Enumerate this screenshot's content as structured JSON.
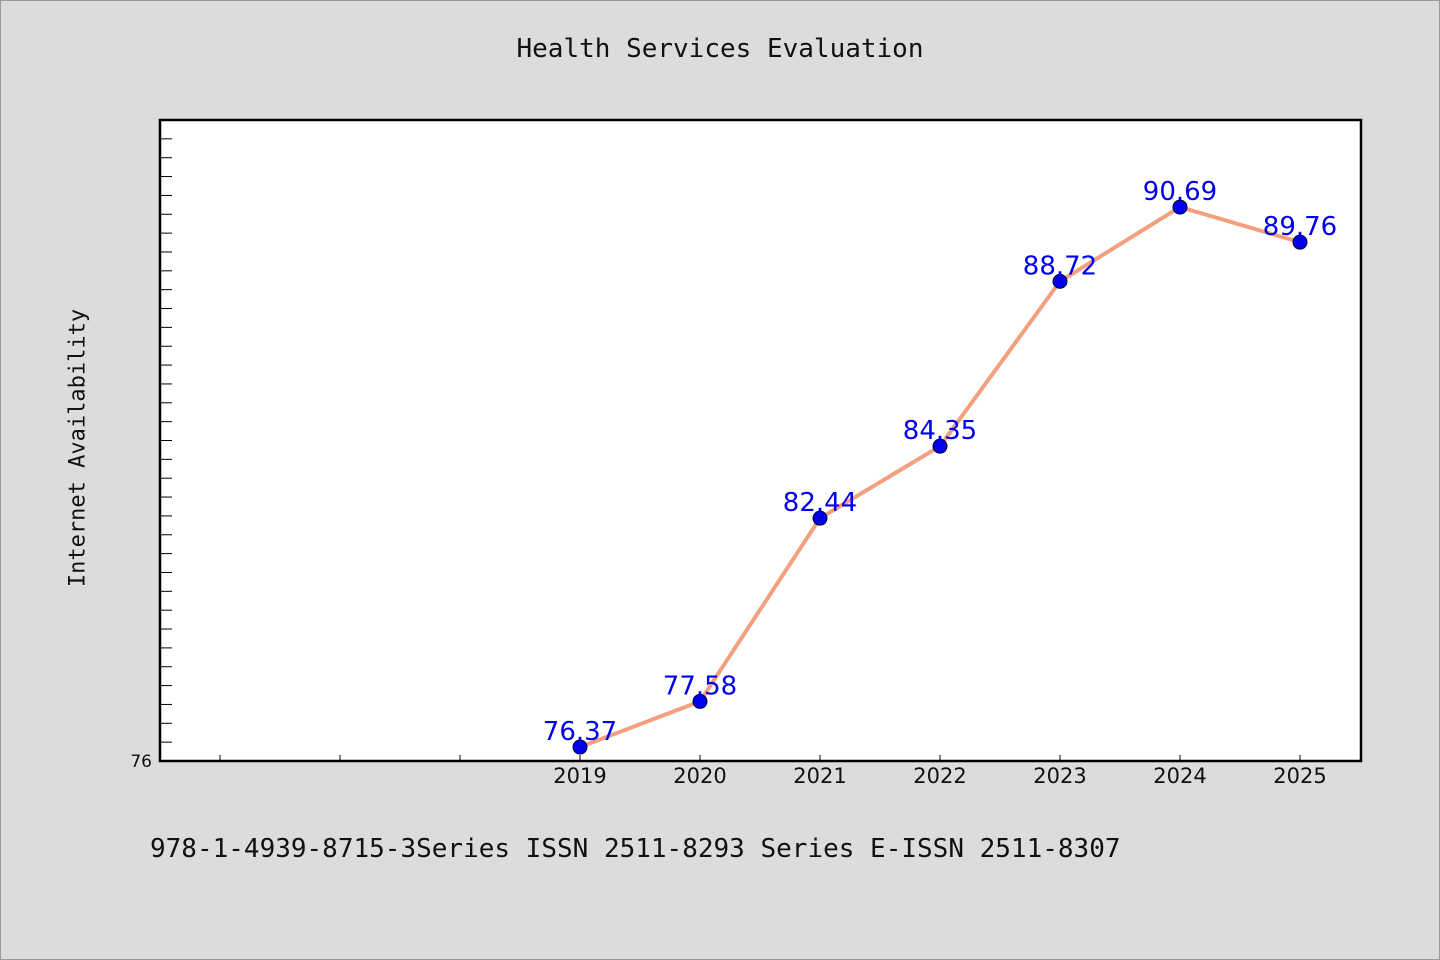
{
  "chart_data": {
    "type": "line",
    "title": "Health Services Evaluation",
    "xlabel": "",
    "ylabel": "Internet Availability",
    "x_ticks_labeled": [
      "2019",
      "2020",
      "2021",
      "2022",
      "2023",
      "2024",
      "2025"
    ],
    "y_tick_label": "76",
    "ylim": [
      76,
      93
    ],
    "series": [
      {
        "x": [
          "2019",
          "2020",
          "2021",
          "2022",
          "2023",
          "2024",
          "2025"
        ],
        "values": [
          76.37,
          77.58,
          82.44,
          84.35,
          88.72,
          90.69,
          89.76
        ],
        "labels": [
          "76.37",
          "77.58",
          "82.44",
          "84.35",
          "88.72",
          "90.69",
          "89.76"
        ]
      }
    ],
    "grid": false,
    "legend": "none",
    "colors": {
      "line": "#f4a07f",
      "marker": "#0000ee",
      "data_label": "#0000ee",
      "plot_bg": "#ffffff",
      "figure_bg": "#dcdcdc"
    }
  },
  "footer": {
    "text": "978-1-4939-8715-3Series ISSN 2511-8293 Series E-ISSN 2511-8307"
  }
}
